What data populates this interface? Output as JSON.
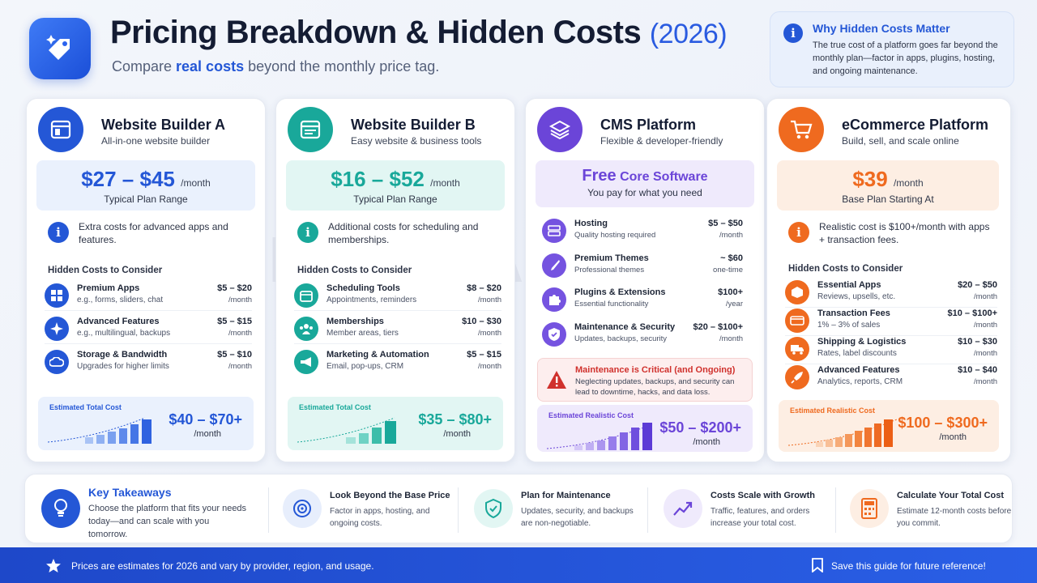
{
  "header": {
    "title": "Pricing Breakdown & Hidden Costs",
    "year": "(2026)",
    "subtitle_pre": "Compare ",
    "subtitle_em": "real costs",
    "subtitle_post": " beyond the monthly price tag."
  },
  "why": {
    "title": "Why Hidden Costs Matter",
    "text": "The true cost of a platform goes far beyond the monthly plan—factor in apps, plugins, hosting, and ongoing maintenance."
  },
  "watermark": "SKILL MAKING",
  "colors": {
    "blue": "#2457d6",
    "teal": "#19a89a",
    "purple": "#6b45d8",
    "orange": "#ef6a1f",
    "red": "#d0312d"
  },
  "cards": {
    "a": {
      "name": "Website Builder A",
      "desc": "All-in-one website builder",
      "icon": "browser-window-icon",
      "price": "$27 – $45",
      "per": "/month",
      "price_sub": "Typical Plan Range",
      "note": "Extra costs for advanced apps and features.",
      "hidden_title": "Hidden Costs to Consider",
      "rows": [
        {
          "name": "Premium Apps",
          "desc": "e.g., forms, sliders, chat",
          "price": "$5 – $20",
          "unit": "/month",
          "icon": "apps-grid-icon"
        },
        {
          "name": "Advanced Features",
          "desc": "e.g., multilingual, backups",
          "price": "$5 – $15",
          "unit": "/month",
          "icon": "sparkle-icon"
        },
        {
          "name": "Storage & Bandwidth",
          "desc": "Upgrades for higher limits",
          "price": "$5 – $10",
          "unit": "/month",
          "icon": "cloud-icon"
        }
      ],
      "est_label": "Estimated Total Cost",
      "est_value": "$40 – $70+",
      "est_unit": "/month"
    },
    "b": {
      "name": "Website Builder B",
      "desc": "Easy website & business tools",
      "icon": "web-page-icon",
      "price": "$16 – $52",
      "per": "/month",
      "price_sub": "Typical Plan Range",
      "note": "Additional costs for scheduling and memberships.",
      "hidden_title": "Hidden Costs to Consider",
      "rows": [
        {
          "name": "Scheduling Tools",
          "desc": "Appointments, reminders",
          "price": "$8 – $20",
          "unit": "/month",
          "icon": "calendar-icon"
        },
        {
          "name": "Memberships",
          "desc": "Member areas, tiers",
          "price": "$10 – $30",
          "unit": "/month",
          "icon": "members-icon"
        },
        {
          "name": "Marketing & Automation",
          "desc": "Email, pop-ups, CRM",
          "price": "$5 – $15",
          "unit": "/month",
          "icon": "megaphone-icon"
        }
      ],
      "est_label": "Estimated Total Cost",
      "est_value": "$35 – $80+",
      "est_unit": "/month"
    },
    "cms": {
      "name": "CMS Platform",
      "desc": "Flexible & developer-friendly",
      "icon": "layers-icon",
      "price_a": "Free",
      "price_b": " Core Software",
      "price_sub": "You pay for what you need",
      "rows": [
        {
          "name": "Hosting",
          "desc": "Quality hosting required",
          "price": "$5 – $50",
          "unit": "/month",
          "icon": "server-icon"
        },
        {
          "name": "Premium Themes",
          "desc": "Professional themes",
          "price": "~ $60",
          "unit": "one-time",
          "icon": "brush-icon"
        },
        {
          "name": "Plugins & Extensions",
          "desc": "Essential functionality",
          "price": "$100+",
          "unit": "/year",
          "icon": "puzzle-icon"
        },
        {
          "name": "Maintenance & Security",
          "desc": "Updates, backups, security",
          "price": "$20 – $100+",
          "unit": "/month",
          "icon": "shield-check-icon"
        }
      ],
      "warn_title": "Maintenance is Critical (and Ongoing)",
      "warn_text": "Neglecting updates, backups, and security can lead to downtime, hacks, and data loss.",
      "est_label": "Estimated Realistic Cost",
      "est_value": "$50 – $200+",
      "est_unit": "/month"
    },
    "ecom": {
      "name": "eCommerce Platform",
      "desc": "Build, sell, and scale online",
      "icon": "shopping-cart-icon",
      "price": "$39",
      "per": "/month",
      "price_sub": "Base Plan Starting At",
      "note": "Realistic cost is $100+/month with apps + transaction fees.",
      "hidden_title": "Hidden Costs to Consider",
      "rows": [
        {
          "name": "Essential Apps",
          "desc": "Reviews, upsells, etc.",
          "price": "$20 – $50",
          "unit": "/month",
          "icon": "cube-icon"
        },
        {
          "name": "Transaction Fees",
          "desc": "1% – 3% of sales",
          "price": "$10 – $100+",
          "unit": "/month",
          "icon": "card-icon"
        },
        {
          "name": "Shipping & Logistics",
          "desc": "Rates, label discounts",
          "price": "$10 – $30",
          "unit": "/month",
          "icon": "truck-icon"
        },
        {
          "name": "Advanced Features",
          "desc": "Analytics, reports, CRM",
          "price": "$10 – $40",
          "unit": "/month",
          "icon": "rocket-icon"
        }
      ],
      "est_label": "Estimated Realistic Cost",
      "est_value": "$100 – $300+",
      "est_unit": "/month"
    }
  },
  "takeaways": {
    "title": "Key Takeaways",
    "text": "Choose the platform that fits your needs today—and can scale with you tomorrow.",
    "items": [
      {
        "title": "Look Beyond the Base Price",
        "text": "Factor in apps, hosting, and ongoing costs.",
        "icon": "target-icon"
      },
      {
        "title": "Plan for Maintenance",
        "text": "Updates, security, and backups are non-negotiable.",
        "icon": "shield-icon"
      },
      {
        "title": "Costs Scale with Growth",
        "text": "Traffic, features, and orders increase your total cost.",
        "icon": "trend-up-icon"
      },
      {
        "title": "Calculate Your Total Cost",
        "text": "Estimate 12-month costs before you commit.",
        "icon": "calculator-icon"
      }
    ]
  },
  "footer": {
    "left": "Prices are estimates for 2026 and vary by provider, region, and usage.",
    "right": "Save this guide for future reference!"
  }
}
